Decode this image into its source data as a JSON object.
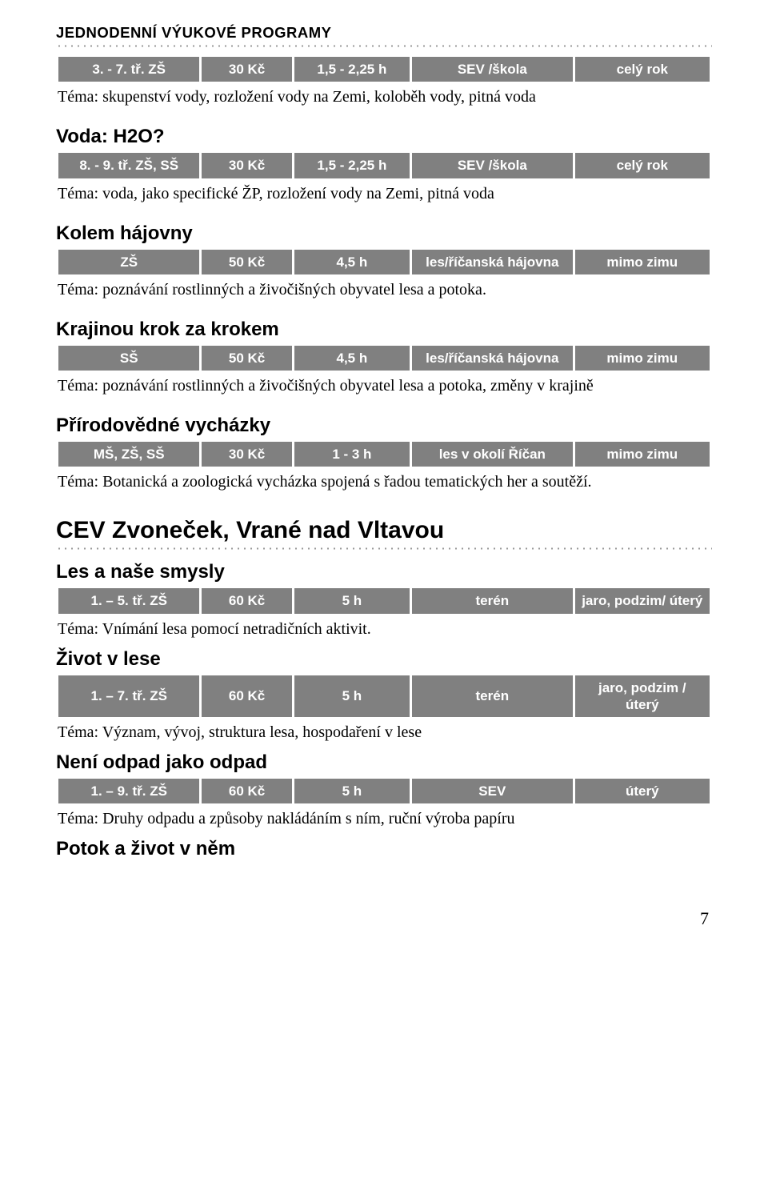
{
  "pageHeader": "JEDNODENNÍ VÝUKOVÉ PROGRAMY",
  "pageNumber": "7",
  "sections": [
    {
      "rows": [
        {
          "cells": [
            "3. - 7. tř. ZŠ",
            "30 Kč",
            "1,5 - 2,25 h",
            "SEV /škola",
            "celý rok"
          ]
        }
      ],
      "desc": "Téma: skupenství vody, rozložení vody na Zemi, koloběh vody, pitná voda"
    },
    {
      "title": "Voda: H2O?",
      "rows": [
        {
          "cells": [
            "8. - 9. tř. ZŠ, SŠ",
            "30 Kč",
            "1,5 - 2,25 h",
            "SEV /škola",
            "celý rok"
          ]
        }
      ],
      "desc": "Téma: voda, jako specifické ŽP, rozložení vody na Zemi, pitná voda"
    },
    {
      "title": "Kolem hájovny",
      "rows": [
        {
          "cells": [
            "ZŠ",
            "50 Kč",
            "4,5 h",
            "les/říčanská hájovna",
            "mimo zimu"
          ]
        }
      ],
      "desc": "Téma:  poznávání rostlinných a živočišných obyvatel lesa a potoka."
    },
    {
      "title": "Krajinou krok za krokem",
      "rows": [
        {
          "cells": [
            "SŠ",
            "50 Kč",
            "4,5 h",
            "les/říčanská hájovna",
            "mimo zimu"
          ]
        }
      ],
      "desc": "Téma:  poznávání rostlinných a živočišných obyvatel lesa a potoka, změny v krajině"
    },
    {
      "title": "Přírodovědné vycházky",
      "rows": [
        {
          "cells": [
            "MŠ, ZŠ, SŠ",
            "30 Kč",
            "1 - 3 h",
            "les v okolí Říčan",
            "mimo zimu"
          ]
        }
      ],
      "desc": "Téma: Botanická a zoologická vycházka spojená s řadou tematických her a soutěží."
    }
  ],
  "section2": {
    "heading": "CEV Zvoneček, Vrané nad Vltavou",
    "items": [
      {
        "title": "Les a naše smysly",
        "rows": [
          {
            "cells": [
              "1. – 5. tř. ZŠ",
              "60 Kč",
              "5 h",
              "terén",
              "jaro, podzim/ úterý"
            ]
          }
        ],
        "desc": "Téma: Vnímání lesa pomocí netradičních aktivit."
      },
      {
        "title": "Život v lese",
        "rows": [
          {
            "cells": [
              "1. – 7. tř. ZŠ",
              "60 Kč",
              "5 h",
              "terén",
              "jaro, podzim / úterý"
            ]
          }
        ],
        "desc": "Téma: Význam, vývoj, struktura lesa, hospodaření v lese"
      },
      {
        "title": "Není odpad jako odpad",
        "rows": [
          {
            "cells": [
              "1. – 9. tř. ZŠ",
              "60 Kč",
              "5 h",
              "SEV",
              "úterý"
            ]
          }
        ],
        "desc": "Téma: Druhy odpadu a způsoby nakládáním s ním, ruční výroba papíru"
      },
      {
        "title": "Potok a život v něm"
      }
    ]
  },
  "colWidths": [
    "22%",
    "14%",
    "18%",
    "25%",
    "21%"
  ]
}
